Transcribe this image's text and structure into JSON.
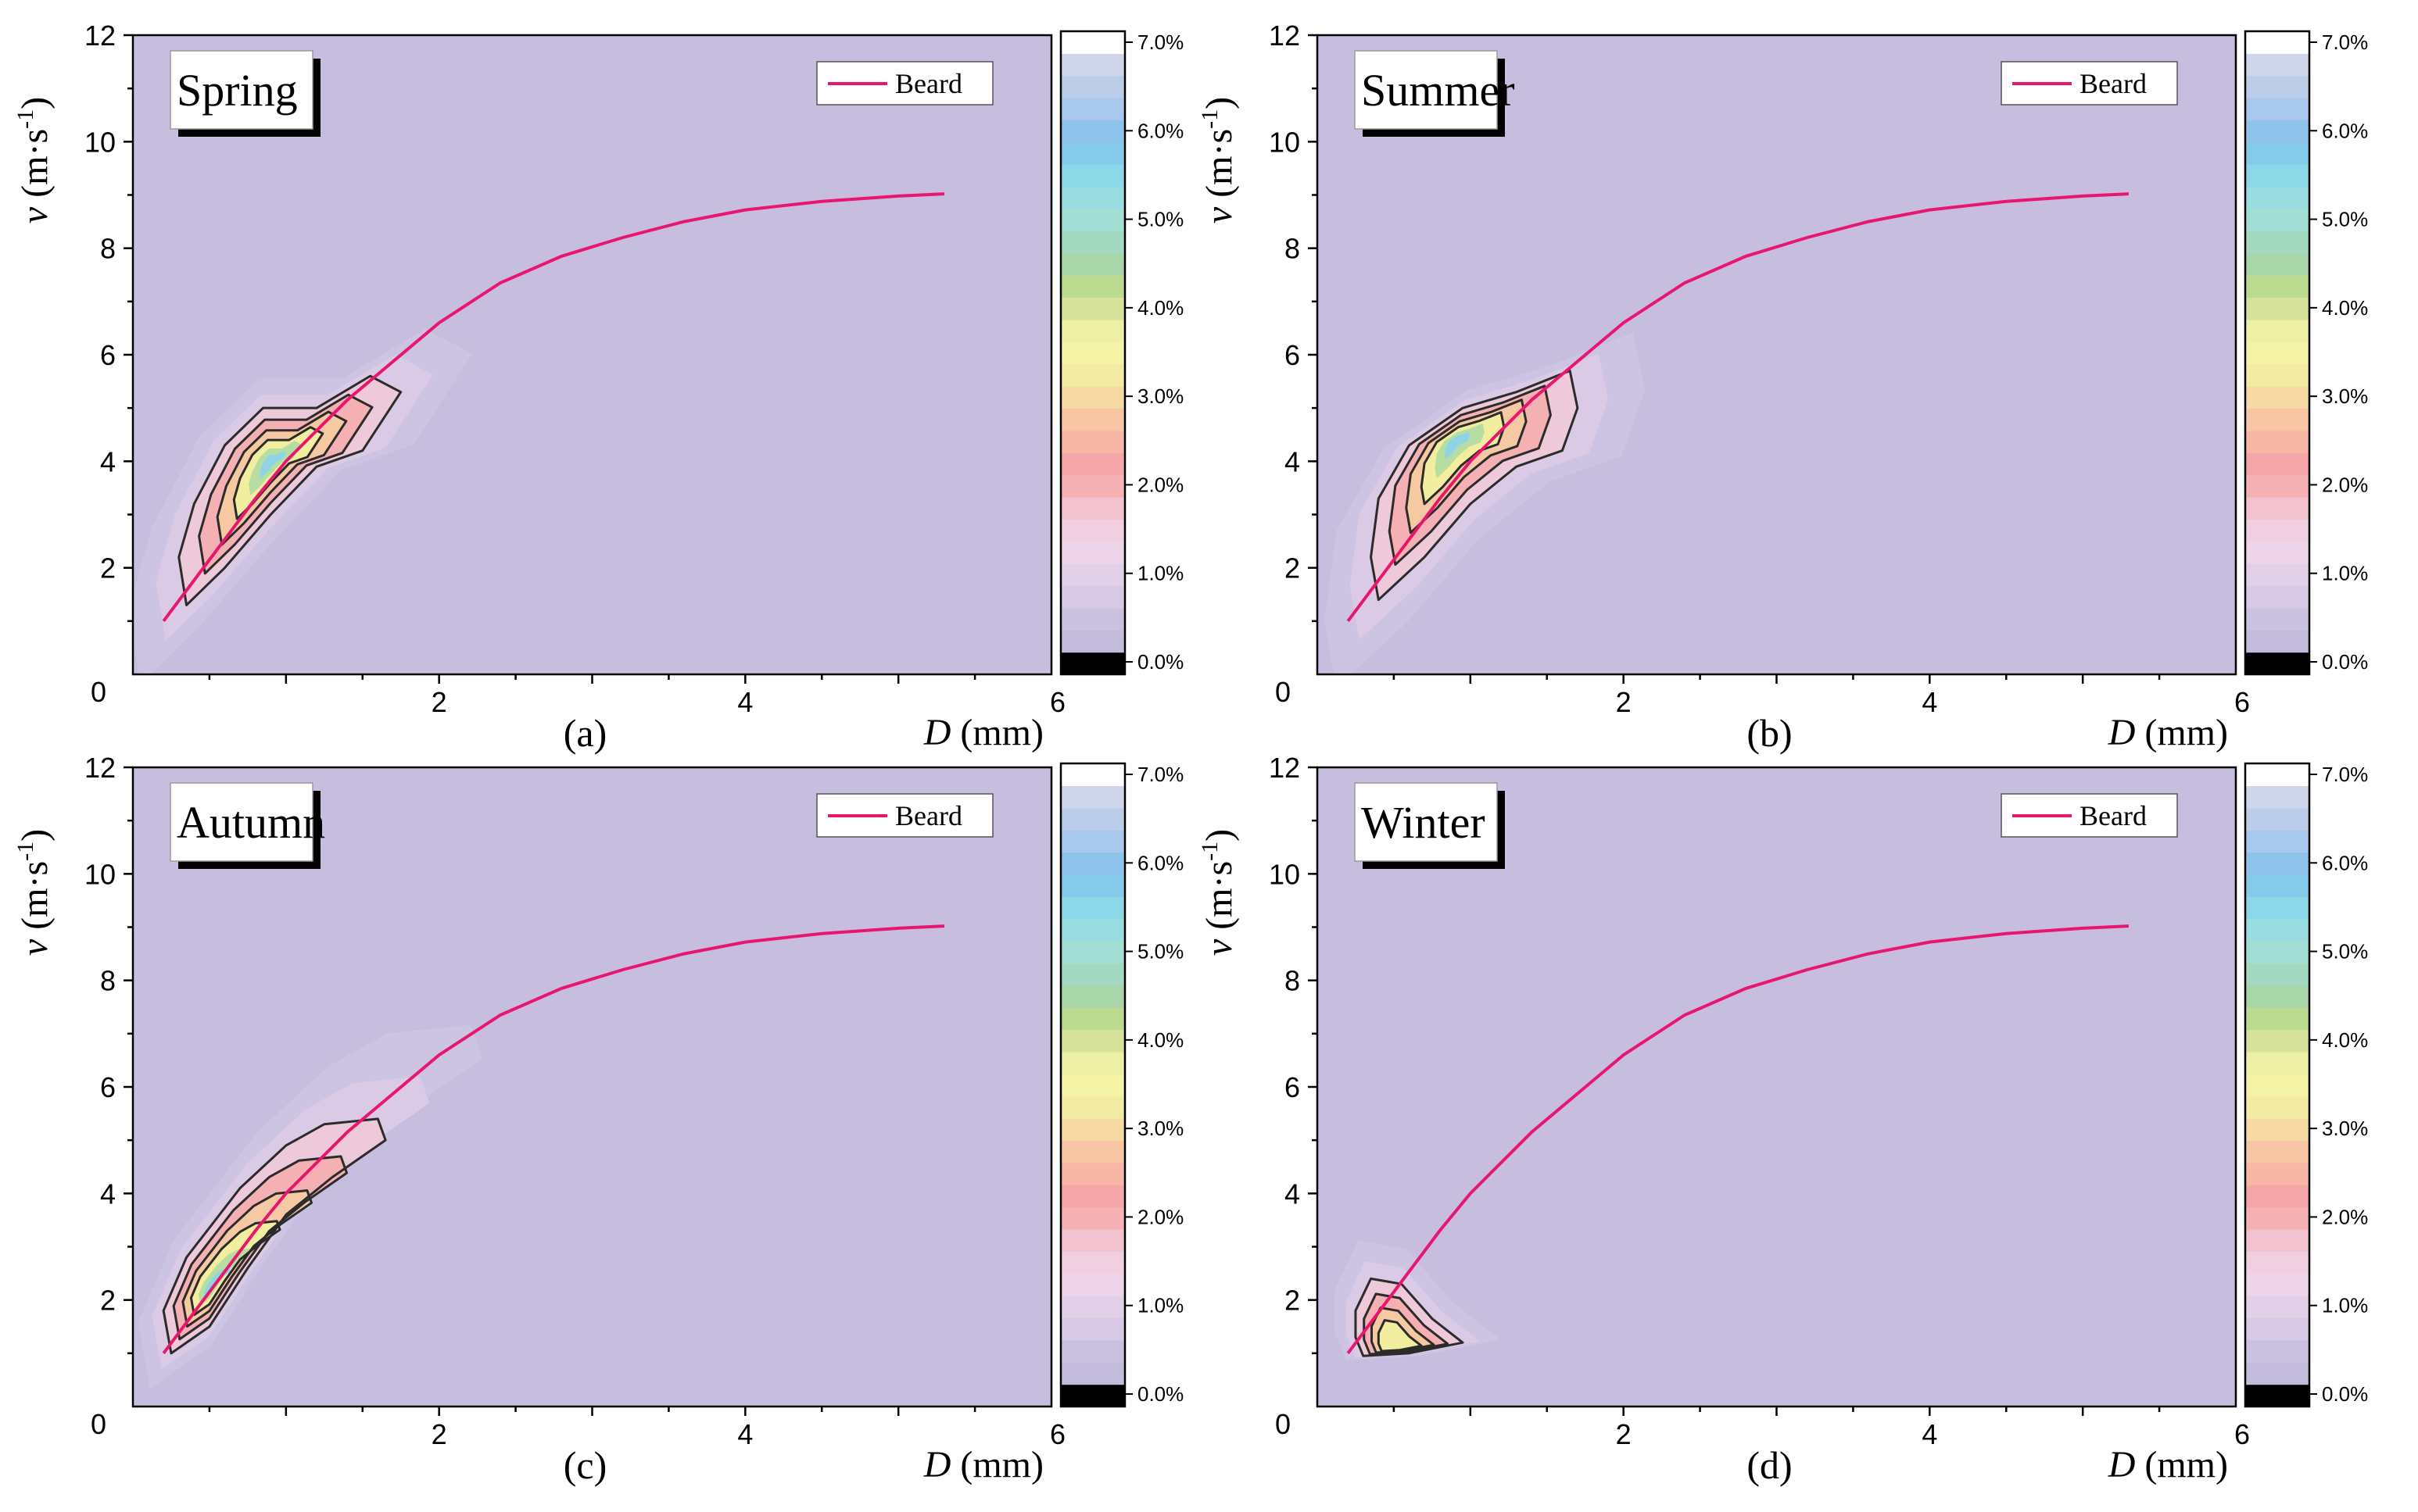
{
  "colors": {
    "background_level": "#c7bedf",
    "beard_line": "#e8166e",
    "contour_line": "#2b2b2b",
    "colorbar": [
      "#000000",
      "#c3bcdc",
      "#cbc1e0",
      "#d8c9e6",
      "#e2d0e8",
      "#edd4e8",
      "#f1cfe0",
      "#f2c3ce",
      "#f5b1b4",
      "#f6a6a8",
      "#f7b6a6",
      "#f8c6a4",
      "#f6d9a3",
      "#f4eba2",
      "#f5f3a5",
      "#eef0a5",
      "#d7e39b",
      "#bcdb91",
      "#a9d6a9",
      "#a2d9c0",
      "#a3ded4",
      "#99dde1",
      "#8ad8e8",
      "#86cbec",
      "#8fc3ee",
      "#a8c8ee",
      "#bccde9",
      "#cfd6ea",
      "#ffffff"
    ]
  },
  "legend_label": "Beard",
  "colorbar_ticks": [
    "0.0%",
    "1.0%",
    "2.0%",
    "3.0%",
    "4.0%",
    "5.0%",
    "6.0%",
    "7.0%"
  ],
  "axis_labels": {
    "y": "v (m·s-1)",
    "x": "D (mm)"
  },
  "chart_data": [
    {
      "id": "a",
      "panel_label": "(a)",
      "title": "Spring",
      "type": "contour",
      "xlabel": "D (mm)",
      "ylabel": "v (m·s-1)",
      "xlim": [
        0,
        6
      ],
      "ylim": [
        0,
        12
      ],
      "xticks": [
        "0",
        "2",
        "4",
        "6"
      ],
      "yticks": [
        "2",
        "4",
        "6",
        "8",
        "10",
        "12"
      ],
      "colorbar_range": [
        0,
        7
      ],
      "colorbar_unit": "%",
      "peak_density": {
        "D": 0.9,
        "v": 4.0,
        "percent": 5.5
      },
      "contour_region": [
        [
          0.35,
          1.3
        ],
        [
          0.6,
          2.0
        ],
        [
          0.9,
          3.0
        ],
        [
          1.2,
          3.9
        ],
        [
          1.5,
          4.2
        ],
        [
          1.75,
          5.3
        ],
        [
          1.55,
          5.6
        ],
        [
          1.2,
          5.0
        ],
        [
          0.85,
          5.0
        ],
        [
          0.6,
          4.3
        ],
        [
          0.4,
          3.2
        ],
        [
          0.3,
          2.2
        ]
      ],
      "beard_curve": {
        "name": "Beard",
        "x": [
          0.2,
          0.5,
          0.8,
          1.0,
          1.4,
          2.0,
          2.4,
          2.8,
          3.2,
          3.6,
          4.0,
          4.5,
          5.0,
          5.3
        ],
        "y": [
          1.0,
          2.15,
          3.3,
          4.0,
          5.15,
          6.6,
          7.35,
          7.85,
          8.2,
          8.5,
          8.72,
          8.88,
          8.98,
          9.02
        ]
      }
    },
    {
      "id": "b",
      "panel_label": "(b)",
      "title": "Summer",
      "type": "contour",
      "xlabel": "D (mm)",
      "ylabel": "v (m·s-1)",
      "xlim": [
        0,
        6
      ],
      "ylim": [
        0,
        12
      ],
      "xticks": [
        "0",
        "2",
        "4",
        "6"
      ],
      "yticks": [
        "2",
        "4",
        "6",
        "8",
        "10",
        "12"
      ],
      "colorbar_range": [
        0,
        7
      ],
      "colorbar_unit": "%",
      "peak_density": {
        "D": 0.9,
        "v": 4.4,
        "percent": 5.0
      },
      "contour_region": [
        [
          0.4,
          1.4
        ],
        [
          0.7,
          2.2
        ],
        [
          1.0,
          3.2
        ],
        [
          1.3,
          3.9
        ],
        [
          1.6,
          4.2
        ],
        [
          1.7,
          5.0
        ],
        [
          1.65,
          5.7
        ],
        [
          1.3,
          5.3
        ],
        [
          0.95,
          5.0
        ],
        [
          0.6,
          4.3
        ],
        [
          0.4,
          3.3
        ],
        [
          0.35,
          2.2
        ]
      ],
      "beard_curve": {
        "name": "Beard",
        "x": [
          0.2,
          0.5,
          0.8,
          1.0,
          1.4,
          2.0,
          2.4,
          2.8,
          3.2,
          3.6,
          4.0,
          4.5,
          5.0,
          5.3
        ],
        "y": [
          1.0,
          2.15,
          3.3,
          4.0,
          5.15,
          6.6,
          7.35,
          7.85,
          8.2,
          8.5,
          8.72,
          8.88,
          8.98,
          9.02
        ]
      }
    },
    {
      "id": "c",
      "panel_label": "(c)",
      "title": "Autumn",
      "type": "contour",
      "xlabel": "D (mm)",
      "ylabel": "v (m·s-1)",
      "xlim": [
        0,
        6
      ],
      "ylim": [
        0,
        12
      ],
      "xticks": [
        "0",
        "2",
        "4",
        "6"
      ],
      "yticks": [
        "2",
        "4",
        "6",
        "8",
        "10",
        "12"
      ],
      "colorbar_range": [
        0,
        7
      ],
      "colorbar_unit": "%",
      "peak_density": {
        "D": 0.5,
        "v": 2.2,
        "percent": 5.5
      },
      "contour_region": [
        [
          0.25,
          1.0
        ],
        [
          0.5,
          1.5
        ],
        [
          0.75,
          2.6
        ],
        [
          1.0,
          3.6
        ],
        [
          1.3,
          4.3
        ],
        [
          1.65,
          5.0
        ],
        [
          1.6,
          5.4
        ],
        [
          1.25,
          5.3
        ],
        [
          1.0,
          4.9
        ],
        [
          0.7,
          4.1
        ],
        [
          0.35,
          2.8
        ],
        [
          0.2,
          1.8
        ]
      ],
      "beard_curve": {
        "name": "Beard",
        "x": [
          0.2,
          0.5,
          0.8,
          1.0,
          1.4,
          2.0,
          2.4,
          2.8,
          3.2,
          3.6,
          4.0,
          4.5,
          5.0,
          5.3
        ],
        "y": [
          1.0,
          2.15,
          3.3,
          4.0,
          5.15,
          6.6,
          7.35,
          7.85,
          8.2,
          8.5,
          8.72,
          8.88,
          8.98,
          9.02
        ]
      }
    },
    {
      "id": "d",
      "panel_label": "(d)",
      "title": "Winter",
      "type": "contour",
      "xlabel": "D (mm)",
      "ylabel": "v (m·s-1)",
      "xlim": [
        0,
        6
      ],
      "ylim": [
        0,
        12
      ],
      "xticks": [
        "0",
        "2",
        "4",
        "6"
      ],
      "yticks": [
        "2",
        "4",
        "6",
        "8",
        "10",
        "12"
      ],
      "colorbar_range": [
        0,
        7
      ],
      "colorbar_unit": "%",
      "peak_density": {
        "D": 0.5,
        "v": 1.1,
        "percent": 3.5
      },
      "contour_region": [
        [
          0.3,
          0.95
        ],
        [
          0.6,
          1.0
        ],
        [
          0.95,
          1.2
        ],
        [
          0.75,
          1.65
        ],
        [
          0.55,
          2.3
        ],
        [
          0.35,
          2.4
        ],
        [
          0.25,
          1.8
        ],
        [
          0.25,
          1.3
        ]
      ],
      "beard_curve": {
        "name": "Beard",
        "x": [
          0.2,
          0.5,
          0.8,
          1.0,
          1.4,
          2.0,
          2.4,
          2.8,
          3.2,
          3.6,
          4.0,
          4.5,
          5.0,
          5.3
        ],
        "y": [
          1.0,
          2.15,
          3.3,
          4.0,
          5.15,
          6.6,
          7.35,
          7.85,
          8.2,
          8.5,
          8.72,
          8.88,
          8.98,
          9.02
        ]
      }
    }
  ]
}
